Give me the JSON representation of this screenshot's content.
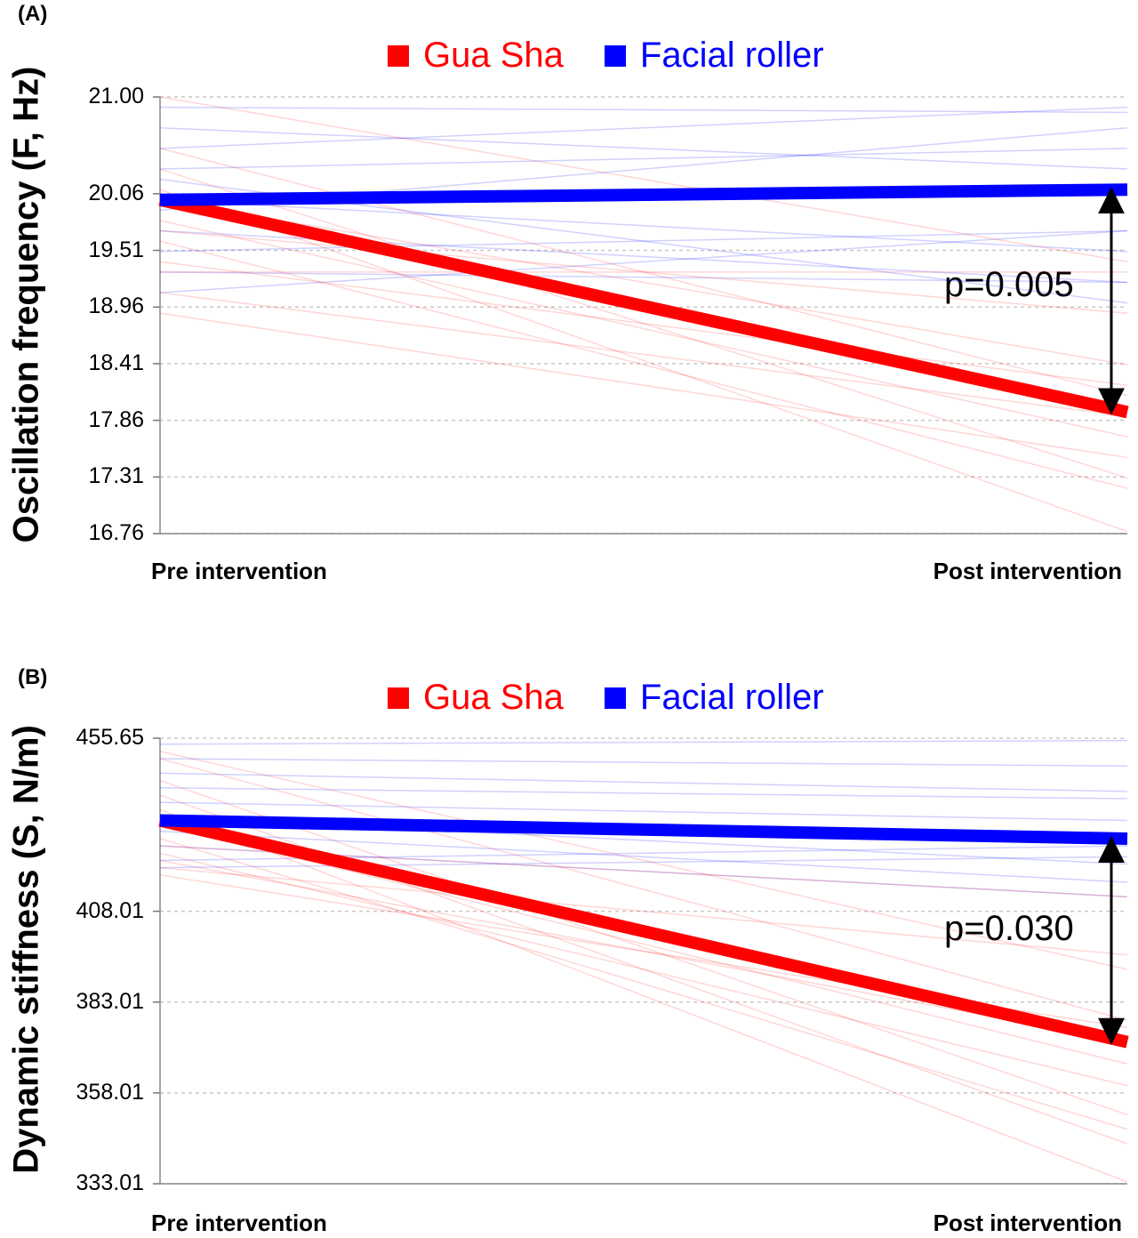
{
  "colors": {
    "gua_sha": "#ff0000",
    "facial_roller": "#0000ff"
  },
  "chart_data": [
    {
      "panel_label": "(A)",
      "type": "line",
      "ylabel": "Oscillation frequency (F, Hz)",
      "x": [
        "Pre intervention",
        "Post intervention"
      ],
      "yticks": [
        16.76,
        17.31,
        17.86,
        18.41,
        18.96,
        19.51,
        20.06,
        21.0
      ],
      "ytick_labels": [
        "16.76",
        "17.31",
        "17.86",
        "18.41",
        "18.96",
        "19.51",
        "20.06",
        "21.00"
      ],
      "ylim": [
        16.76,
        21.0
      ],
      "grid": true,
      "legend": [
        "Gua Sha",
        "Facial roller"
      ],
      "legend_position": "top",
      "series": [
        {
          "name": "Gua Sha",
          "values": [
            20.0,
            17.94
          ]
        },
        {
          "name": "Facial roller",
          "values": [
            20.0,
            20.1
          ]
        }
      ],
      "individual": {
        "gua_sha": [
          [
            21.0,
            19.4
          ],
          [
            20.5,
            18.1
          ],
          [
            20.3,
            17.3
          ],
          [
            20.1,
            16.78
          ],
          [
            20.0,
            18.4
          ],
          [
            19.8,
            17.7
          ],
          [
            19.7,
            18.9
          ],
          [
            19.6,
            17.2
          ],
          [
            19.4,
            18.2
          ],
          [
            19.3,
            19.3
          ],
          [
            19.1,
            17.9
          ],
          [
            18.9,
            17.5
          ]
        ],
        "facial_roller": [
          [
            20.9,
            20.85
          ],
          [
            20.7,
            20.3
          ],
          [
            20.5,
            20.9
          ],
          [
            20.3,
            20.5
          ],
          [
            20.2,
            19.0
          ],
          [
            20.0,
            19.5
          ],
          [
            19.9,
            20.7
          ],
          [
            19.7,
            19.2
          ],
          [
            19.5,
            19.7
          ],
          [
            19.3,
            19.2
          ],
          [
            19.1,
            19.7
          ]
        ]
      },
      "annotation": "p=0.005"
    },
    {
      "panel_label": "(B)",
      "type": "line",
      "ylabel": "Dynamic stiffness (S, N/m)",
      "x": [
        "Pre intervention",
        "Post intervention"
      ],
      "yticks": [
        333.01,
        358.01,
        383.01,
        408.01,
        455.65
      ],
      "ytick_labels": [
        "333.01",
        "358.01",
        "383.01",
        "408.01",
        "455.65"
      ],
      "ylim": [
        333.01,
        455.65
      ],
      "grid": true,
      "legend": [
        "Gua Sha",
        "Facial roller"
      ],
      "legend_position": "top",
      "series": [
        {
          "name": "Gua Sha",
          "values": [
            433.0,
            372.0
          ]
        },
        {
          "name": "Facial roller",
          "values": [
            433.0,
            428.0
          ]
        }
      ],
      "individual": {
        "gua_sha": [
          [
            452.0,
            392.0
          ],
          [
            450.0,
            378.0
          ],
          [
            444.0,
            352.0
          ],
          [
            440.0,
            344.0
          ],
          [
            436.0,
            333.5
          ],
          [
            432.0,
            366.0
          ],
          [
            428.0,
            348.0
          ],
          [
            424.0,
            360.0
          ],
          [
            420.0,
            396.0
          ],
          [
            418.0,
            376.0
          ],
          [
            426.0,
            412.0
          ],
          [
            422.0,
            372.0
          ]
        ],
        "facial_roller": [
          [
            454.0,
            455.0
          ],
          [
            450.0,
            448.0
          ],
          [
            446.0,
            441.0
          ],
          [
            442.0,
            439.0
          ],
          [
            438.0,
            433.0
          ],
          [
            434.0,
            421.0
          ],
          [
            430.0,
            416.0
          ],
          [
            426.0,
            412.0
          ],
          [
            422.0,
            426.0
          ],
          [
            420.0,
            423.0
          ]
        ]
      },
      "annotation": "p=0.030"
    }
  ]
}
